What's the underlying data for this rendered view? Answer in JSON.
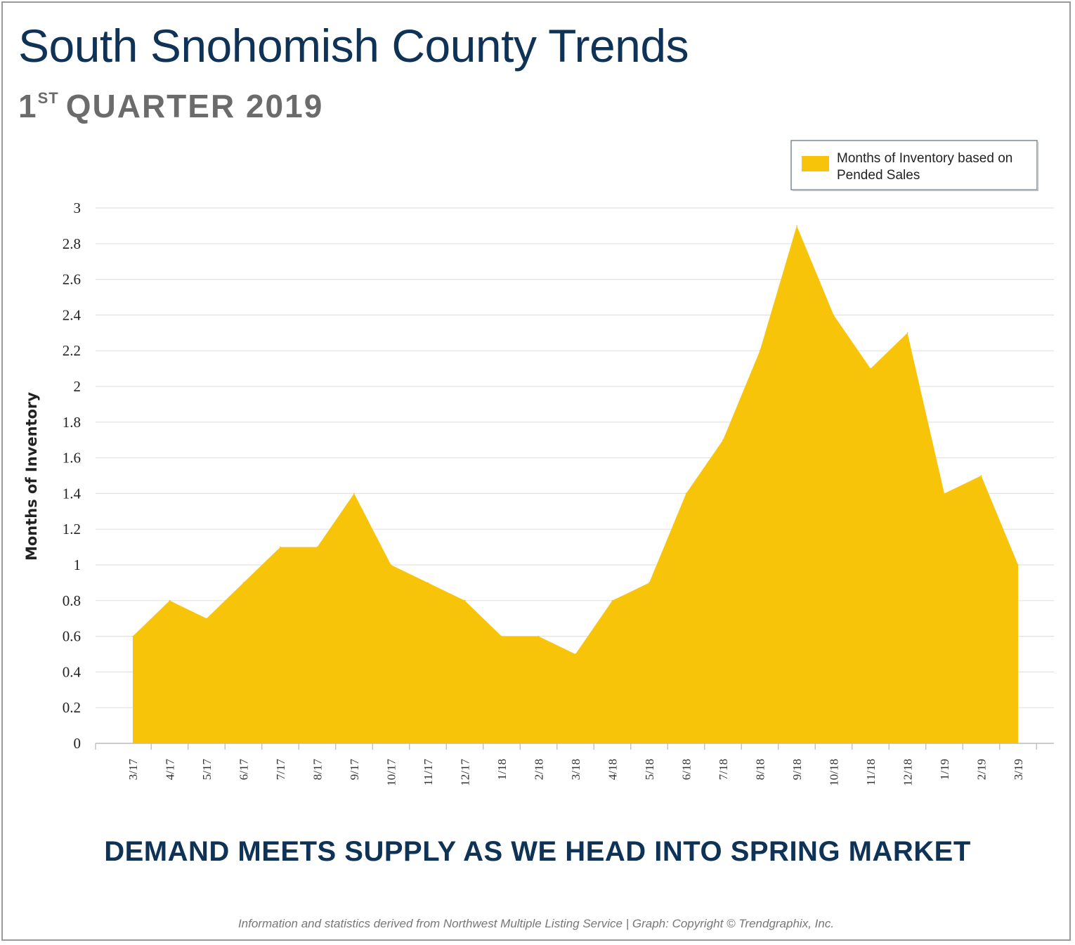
{
  "header": {
    "title": "South Snohomish County Trends",
    "subtitle_number": "1",
    "subtitle_ordinal": "ST",
    "subtitle_rest": "QUARTER 2019"
  },
  "headline": "DEMAND MEETS SUPPLY AS WE HEAD INTO SPRING MARKET",
  "footer": "Information and statistics derived from Northwest Multiple Listing Service  |  Graph: Copyright © Trendgraphix, Inc.",
  "colors": {
    "area_fill": "#f7c40a",
    "title": "#0f3257",
    "subtitle": "#6b6b6b",
    "gridline": "#e2e2e2"
  },
  "chart_data": {
    "type": "area",
    "ylabel": "Months of Inventory",
    "xlabel": "",
    "ylim": [
      0,
      3
    ],
    "yticks": [
      "0",
      "0.2",
      "0.4",
      "0.6",
      "0.8",
      "1",
      "1.2",
      "1.4",
      "1.6",
      "1.8",
      "2",
      "2.2",
      "2.4",
      "2.6",
      "2.8",
      "3"
    ],
    "grid": true,
    "legend": "top-right",
    "categories": [
      "3/17",
      "4/17",
      "5/17",
      "6/17",
      "7/17",
      "8/17",
      "9/17",
      "10/17",
      "11/17",
      "12/17",
      "1/18",
      "2/18",
      "3/18",
      "4/18",
      "5/18",
      "6/18",
      "7/18",
      "8/18",
      "9/18",
      "10/18",
      "11/18",
      "12/18",
      "1/19",
      "2/19",
      "3/19"
    ],
    "series": [
      {
        "name": "Months of Inventory based on Pended Sales",
        "values": [
          0.6,
          0.8,
          0.7,
          0.9,
          1.1,
          1.1,
          1.4,
          1.0,
          0.9,
          0.8,
          0.6,
          0.6,
          0.5,
          0.8,
          0.9,
          1.4,
          1.7,
          2.2,
          2.9,
          2.4,
          2.1,
          2.3,
          1.4,
          1.5,
          1.0
        ]
      }
    ]
  }
}
